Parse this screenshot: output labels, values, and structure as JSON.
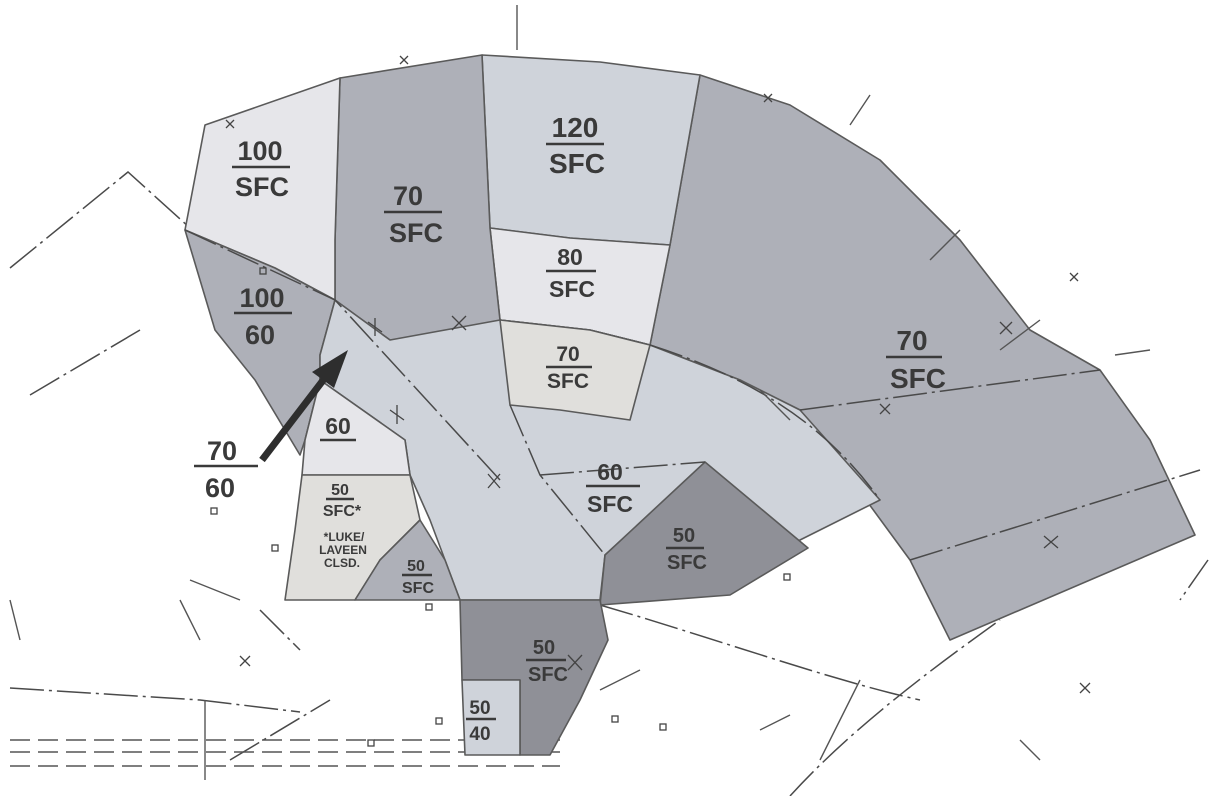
{
  "colors": {
    "background": "#ffffff",
    "shade_lightest": "#e6e6ea",
    "shade_light": "#cfd3da",
    "shade_medium": "#aeb0b8",
    "shade_dark": "#8f9097",
    "shade_pale_warm": "#e0dfdc",
    "text": "#3a3a3a"
  },
  "sectors": [
    {
      "name": "sector-100-sfc",
      "fill": "#e6e6ea",
      "ceiling": "100",
      "floor": "SFC"
    },
    {
      "name": "sector-70-sfc-north",
      "fill": "#aeb0b8",
      "ceiling": "70",
      "floor": "SFC"
    },
    {
      "name": "sector-120-sfc",
      "fill": "#cfd3da",
      "ceiling": "120",
      "floor": "SFC"
    },
    {
      "name": "sector-80-sfc",
      "fill": "#e6e6ea",
      "ceiling": "80",
      "floor": "SFC"
    },
    {
      "name": "sector-70-sfc-inner",
      "fill": "#e0dfdc",
      "ceiling": "70",
      "floor": "SFC"
    },
    {
      "name": "sector-70-sfc-east",
      "fill": "#aeb0b8",
      "ceiling": "70",
      "floor": "SFC"
    },
    {
      "name": "sector-100-60",
      "fill": "#aeb0b8",
      "ceiling": "100",
      "floor": "60"
    },
    {
      "name": "sector-60-sfc",
      "fill": "#cfd3da",
      "ceiling": "60",
      "floor": "SFC"
    },
    {
      "name": "sector-60",
      "fill": "#e6e6ea",
      "ceiling": "60",
      "floor": ""
    },
    {
      "name": "sector-50-sfc-luke",
      "fill": "#e0dfdc",
      "ceiling": "50",
      "floor": "SFC*"
    },
    {
      "name": "sector-50-sfc-small",
      "fill": "#aeb0b8",
      "ceiling": "50",
      "floor": "SFC"
    },
    {
      "name": "sector-50-sfc-east",
      "fill": "#8f9097",
      "ceiling": "50",
      "floor": "SFC"
    },
    {
      "name": "sector-50-sfc-south",
      "fill": "#8f9097",
      "ceiling": "50",
      "floor": "SFC"
    },
    {
      "name": "sector-50-40",
      "fill": "#cfd3da",
      "ceiling": "50",
      "floor": "40"
    }
  ],
  "callout": {
    "ceiling": "70",
    "floor": "60"
  },
  "note": {
    "line1": "*LUKE/",
    "line2": "LAVEEN",
    "line3": "CLSD."
  }
}
